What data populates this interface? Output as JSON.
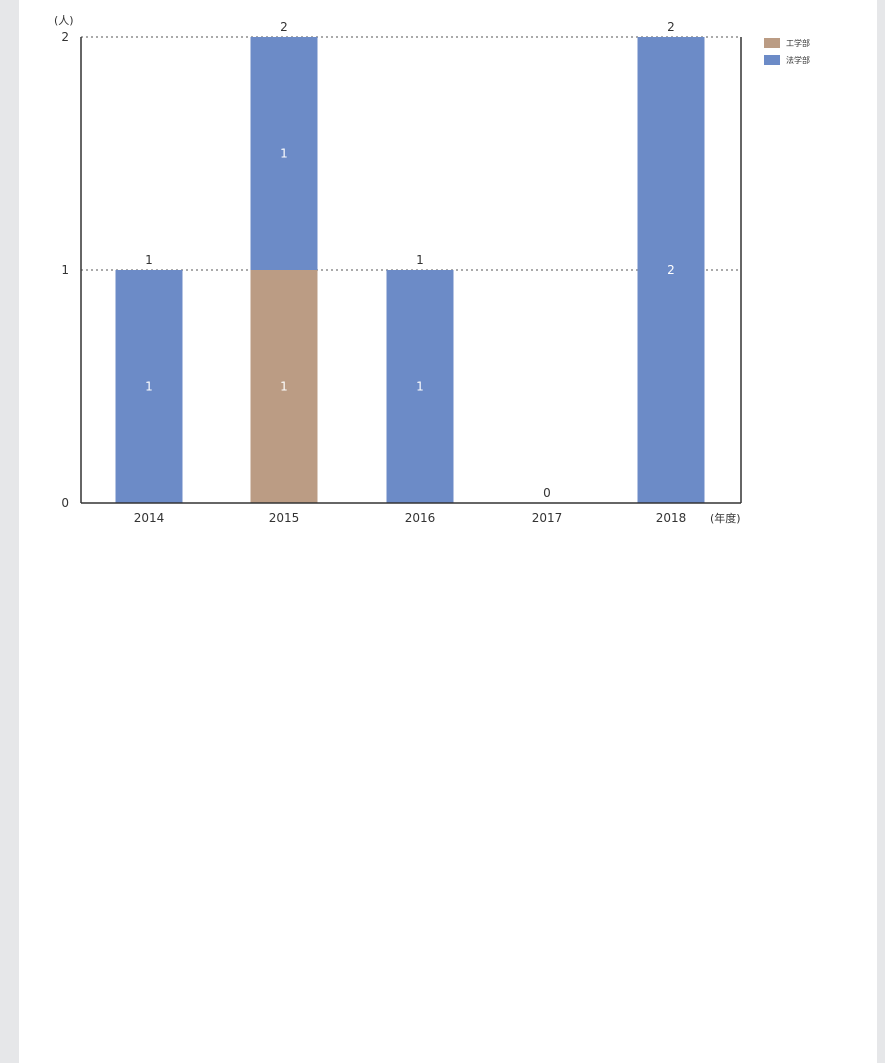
{
  "chart_data": {
    "type": "bar",
    "stacked": true,
    "categories": [
      "2014",
      "2015",
      "2016",
      "2017",
      "2018"
    ],
    "series": [
      {
        "name": "工学部",
        "color": "#bb9c84",
        "values": [
          0,
          1,
          0,
          0,
          0
        ]
      },
      {
        "name": "法学部",
        "color": "#6c8bc7",
        "values": [
          1,
          1,
          1,
          0,
          2
        ]
      }
    ],
    "segment_labels": [
      [
        "",
        "1",
        "",
        "",
        ""
      ],
      [
        "1",
        "1",
        "1",
        "",
        "2"
      ]
    ],
    "totals": [
      "1",
      "2",
      "1",
      "0",
      "2"
    ],
    "yticks": [
      "0",
      "1",
      "2"
    ],
    "ylim": [
      0,
      2
    ],
    "ylabel": "(人)",
    "xlabel": "(年度)",
    "grid": "dotted horizontal",
    "legend_position": "top-right"
  }
}
